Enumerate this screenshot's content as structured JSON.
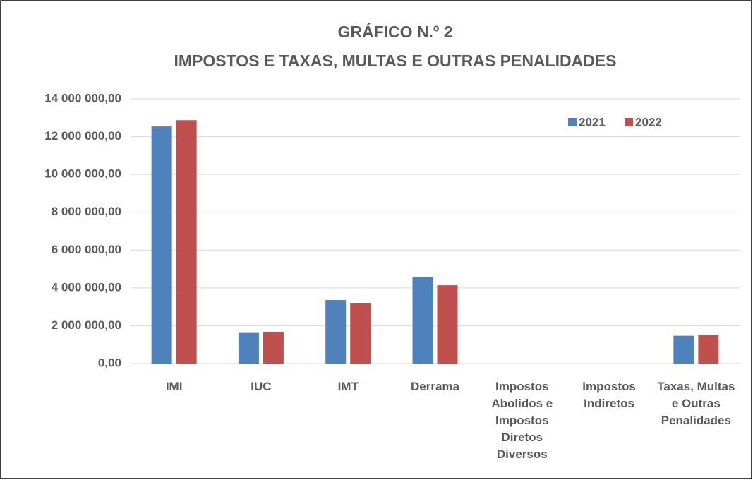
{
  "chart_data": {
    "type": "bar",
    "title": [
      "GRÁFICO N.º 2",
      "IMPOSTOS E TAXAS, MULTAS E OUTRAS PENALIDADES"
    ],
    "categories": [
      "IMI",
      "IUC",
      "IMT",
      "Derrama",
      "Impostos Abolidos e Impostos Diretos Diversos",
      "Impostos Indiretos",
      "Taxas, Multas e Outras Penalidades"
    ],
    "series": [
      {
        "name": "2021",
        "color": "#4f81bd",
        "values": [
          12540000,
          1620000,
          3360000,
          4590000,
          0,
          0,
          1470000
        ]
      },
      {
        "name": "2022",
        "color": "#c0504d",
        "values": [
          12870000,
          1660000,
          3210000,
          4140000,
          0,
          0,
          1520000
        ]
      }
    ],
    "ylim": [
      0,
      14000000
    ],
    "yticks": [
      {
        "value": 0,
        "label": "0,00"
      },
      {
        "value": 2000000,
        "label": "2 000 000,00"
      },
      {
        "value": 4000000,
        "label": "4 000 000,00"
      },
      {
        "value": 6000000,
        "label": "6 000 000,00"
      },
      {
        "value": 8000000,
        "label": "8 000 000,00"
      },
      {
        "value": 10000000,
        "label": "10 000 000,00"
      },
      {
        "value": 12000000,
        "label": "12 000 000,00"
      },
      {
        "value": 14000000,
        "label": "14 000 000,00"
      }
    ],
    "grid": true,
    "legend": "upper right"
  }
}
